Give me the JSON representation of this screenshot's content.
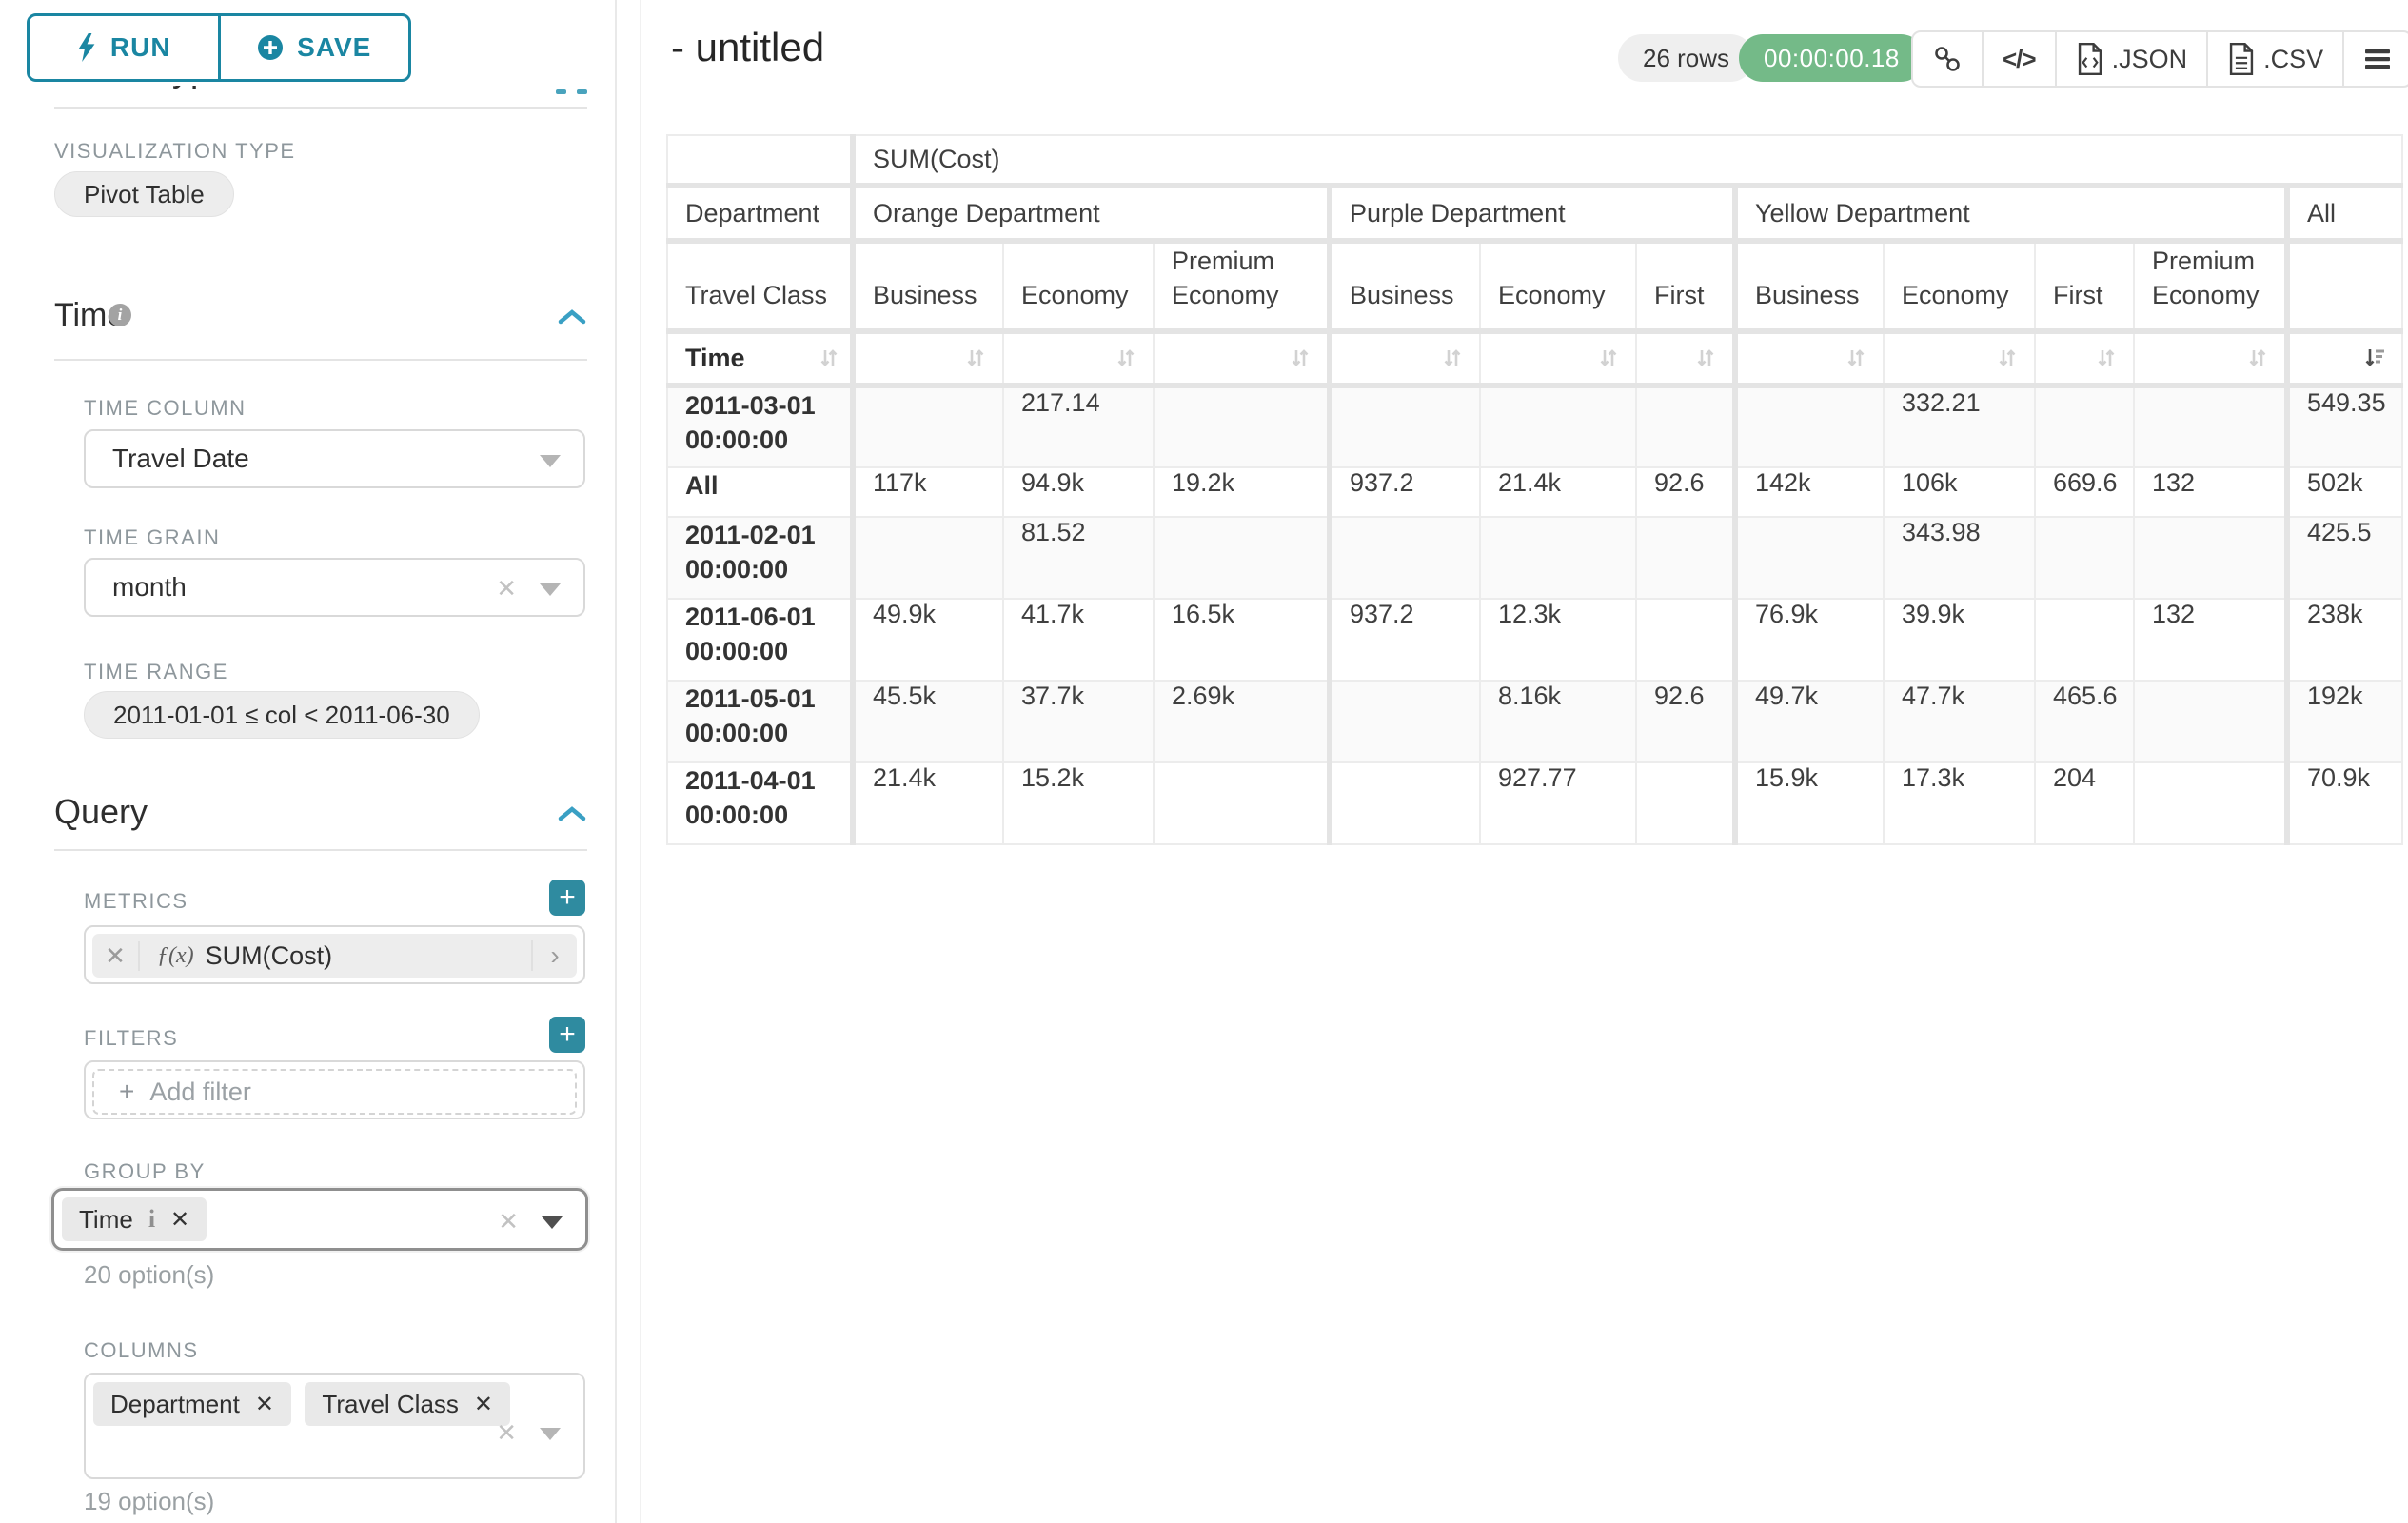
{
  "colors": {
    "accent": "#1a86a2",
    "timer_green": "#74ba88",
    "plus_button": "#2f8ba0"
  },
  "sidebar": {
    "run_label": "RUN",
    "save_label": "SAVE",
    "chart_type_heading": "Chart Type",
    "viz_label": "VISUALIZATION TYPE",
    "viz_value": "Pivot Table",
    "time": {
      "title": "Time",
      "time_column_label": "TIME COLUMN",
      "time_column_value": "Travel Date",
      "time_grain_label": "TIME GRAIN",
      "time_grain_value": "month",
      "time_range_label": "TIME RANGE",
      "time_range_value": "2011-01-01 ≤ col < 2011-06-30"
    },
    "query": {
      "title": "Query",
      "metrics_label": "METRICS",
      "metric_fx": "ƒ(x)",
      "metric_value": "SUM(Cost)",
      "filters_label": "FILTERS",
      "add_filter_label": "Add filter",
      "group_by_label": "GROUP BY",
      "group_by_chip": "Time",
      "group_by_options": "20 option(s)",
      "columns_label": "COLUMNS",
      "columns_chip_1": "Department",
      "columns_chip_2": "Travel Class",
      "columns_options": "19 option(s)"
    }
  },
  "header": {
    "title": "- untitled",
    "row_count": "26 rows",
    "duration": "00:00:00.18",
    "json_label": ".JSON",
    "csv_label": ".CSV"
  },
  "pivot": {
    "metric_header": "SUM(Cost)",
    "row_dim": "Department",
    "col_dim": "Travel Class",
    "time_label": "Time",
    "groups": [
      {
        "label": "Orange Department",
        "cols": [
          "Business",
          "Economy",
          "Premium Economy"
        ]
      },
      {
        "label": "Purple Department",
        "cols": [
          "Business",
          "Economy",
          "First"
        ]
      },
      {
        "label": "Yellow Department",
        "cols": [
          "Business",
          "Economy",
          "First",
          "Premium Economy"
        ]
      },
      {
        "label": "All",
        "cols": [
          ""
        ]
      }
    ],
    "sort_col_index": 10,
    "rows": [
      {
        "label": "2011-03-01 00:00:00",
        "values": [
          "",
          "217.14",
          "",
          "",
          "",
          "",
          "",
          "332.21",
          "",
          "",
          "549.35"
        ]
      },
      {
        "label": "All",
        "values": [
          "117k",
          "94.9k",
          "19.2k",
          "937.2",
          "21.4k",
          "92.6",
          "142k",
          "106k",
          "669.6",
          "132",
          "502k"
        ]
      },
      {
        "label": "2011-02-01 00:00:00",
        "values": [
          "",
          "81.52",
          "",
          "",
          "",
          "",
          "",
          "343.98",
          "",
          "",
          "425.5"
        ]
      },
      {
        "label": "2011-06-01 00:00:00",
        "values": [
          "49.9k",
          "41.7k",
          "16.5k",
          "937.2",
          "12.3k",
          "",
          "76.9k",
          "39.9k",
          "",
          "132",
          "238k"
        ]
      },
      {
        "label": "2011-05-01 00:00:00",
        "values": [
          "45.5k",
          "37.7k",
          "2.69k",
          "",
          "8.16k",
          "92.6",
          "49.7k",
          "47.7k",
          "465.6",
          "",
          "192k"
        ]
      },
      {
        "label": "2011-04-01 00:00:00",
        "values": [
          "21.4k",
          "15.2k",
          "",
          "",
          "927.77",
          "",
          "15.9k",
          "17.3k",
          "204",
          "",
          "70.9k"
        ]
      }
    ]
  }
}
